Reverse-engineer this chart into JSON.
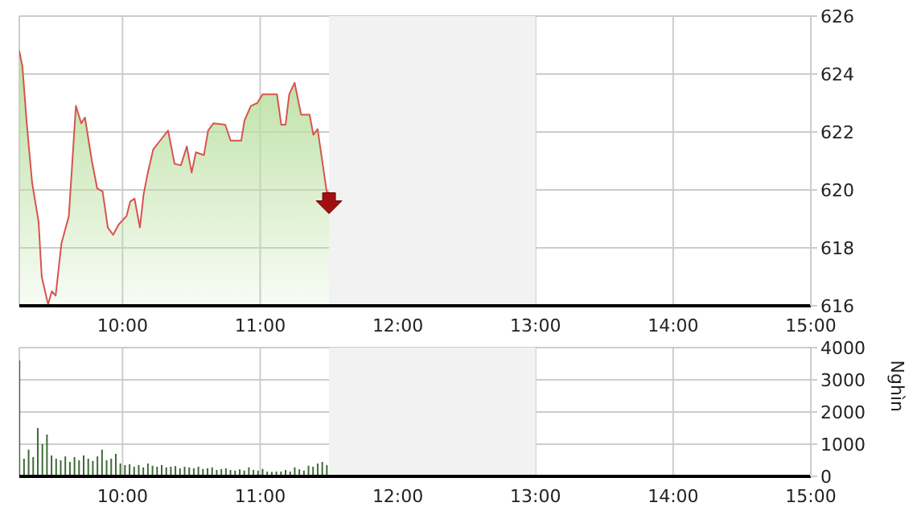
{
  "chart_data": [
    {
      "type": "area",
      "x": [
        9.25,
        9.273,
        9.304,
        9.343,
        9.39,
        9.413,
        9.459,
        9.486,
        9.514,
        9.556,
        9.61,
        9.661,
        9.7,
        9.727,
        9.777,
        9.816,
        9.855,
        9.893,
        9.932,
        9.971,
        10.029,
        10.056,
        10.087,
        10.126,
        10.153,
        10.184,
        10.223,
        10.281,
        10.331,
        10.378,
        10.424,
        10.467,
        10.502,
        10.533,
        10.591,
        10.622,
        10.661,
        10.746,
        10.785,
        10.862,
        10.886,
        10.932,
        10.979,
        11.017,
        11.056,
        11.122,
        11.153,
        11.184,
        11.211,
        11.25,
        11.297,
        11.359,
        11.386,
        11.417,
        11.483,
        11.5
      ],
      "series": [
        {
          "color": "#d9534f",
          "values": [
            624.8,
            624.25,
            622.3,
            620.25,
            618.9,
            617.0,
            616.05,
            616.5,
            616.35,
            618.15,
            619.1,
            622.9,
            622.3,
            622.5,
            621.0,
            620.05,
            619.95,
            618.7,
            618.45,
            618.8,
            619.1,
            619.6,
            619.7,
            618.7,
            619.85,
            620.6,
            621.4,
            621.75,
            622.05,
            620.9,
            620.85,
            621.5,
            620.6,
            621.3,
            621.2,
            622.05,
            622.3,
            622.25,
            621.7,
            621.7,
            622.4,
            622.9,
            623.0,
            623.3,
            623.3,
            623.3,
            622.25,
            622.25,
            623.3,
            623.7,
            622.6,
            622.6,
            621.9,
            622.1,
            619.95,
            619.9
          ]
        }
      ],
      "xlim": [
        9.25,
        15
      ],
      "xticks": [
        {
          "value": 10,
          "label": "10:00"
        },
        {
          "value": 11,
          "label": "11:00"
        },
        {
          "value": 12,
          "label": "12:00"
        },
        {
          "value": 13,
          "label": "13:00"
        },
        {
          "value": 14,
          "label": "14:00"
        },
        {
          "value": 15,
          "label": "15:00"
        }
      ],
      "ylim": [
        616,
        626
      ],
      "yticks": [
        616,
        618,
        620,
        622,
        624,
        626
      ],
      "grid": true,
      "marker": "none",
      "bands": [
        {
          "axis": "x",
          "from": 11.5,
          "to": 13,
          "color": "#f2f2f2"
        }
      ]
    },
    {
      "type": "bar",
      "x": [
        9.25,
        9.2833,
        9.3167,
        9.35,
        9.3833,
        9.4167,
        9.45,
        9.4833,
        9.5167,
        9.55,
        9.5833,
        9.6167,
        9.65,
        9.6833,
        9.7167,
        9.75,
        9.7833,
        9.8167,
        9.85,
        9.8833,
        9.9167,
        9.95,
        9.9833,
        10.0167,
        10.05,
        10.0833,
        10.1167,
        10.15,
        10.1833,
        10.2167,
        10.25,
        10.2833,
        10.3167,
        10.35,
        10.3833,
        10.4167,
        10.45,
        10.4833,
        10.5167,
        10.55,
        10.5833,
        10.6167,
        10.65,
        10.6833,
        10.7167,
        10.75,
        10.7833,
        10.8167,
        10.85,
        10.8833,
        10.9167,
        10.95,
        10.9833,
        11.0167,
        11.05,
        11.0833,
        11.1167,
        11.15,
        11.1833,
        11.2167,
        11.25,
        11.2833,
        11.3167,
        11.35,
        11.3833,
        11.4167,
        11.45,
        11.4833
      ],
      "series": [
        {
          "color": "#3d6b35",
          "values": [
            3600,
            550,
            830,
            600,
            1500,
            1000,
            1300,
            650,
            550,
            500,
            620,
            450,
            600,
            500,
            650,
            550,
            480,
            620,
            830,
            500,
            550,
            700,
            400,
            350,
            380,
            300,
            350,
            280,
            400,
            330,
            300,
            350,
            280,
            300,
            320,
            250,
            300,
            280,
            250,
            300,
            230,
            250,
            280,
            200,
            230,
            250,
            200,
            180,
            220,
            180,
            280,
            200,
            180,
            230,
            150,
            140,
            150,
            150,
            200,
            150,
            280,
            220,
            180,
            330,
            300,
            400,
            450,
            350
          ]
        }
      ],
      "xlim": [
        9.25,
        15
      ],
      "xticks": [
        {
          "value": 10,
          "label": "10:00"
        },
        {
          "value": 11,
          "label": "11:00"
        },
        {
          "value": 12,
          "label": "12:00"
        },
        {
          "value": 13,
          "label": "13:00"
        },
        {
          "value": 14,
          "label": "14:00"
        },
        {
          "value": 15,
          "label": "15:00"
        }
      ],
      "ylim": [
        0,
        4000
      ],
      "yticks": [
        0,
        1000,
        2000,
        3000,
        4000
      ],
      "ylabel": "Nghìn",
      "grid": true,
      "bands": [
        {
          "axis": "x",
          "from": 11.5,
          "to": 13,
          "color": "#f2f2f2"
        }
      ]
    }
  ]
}
